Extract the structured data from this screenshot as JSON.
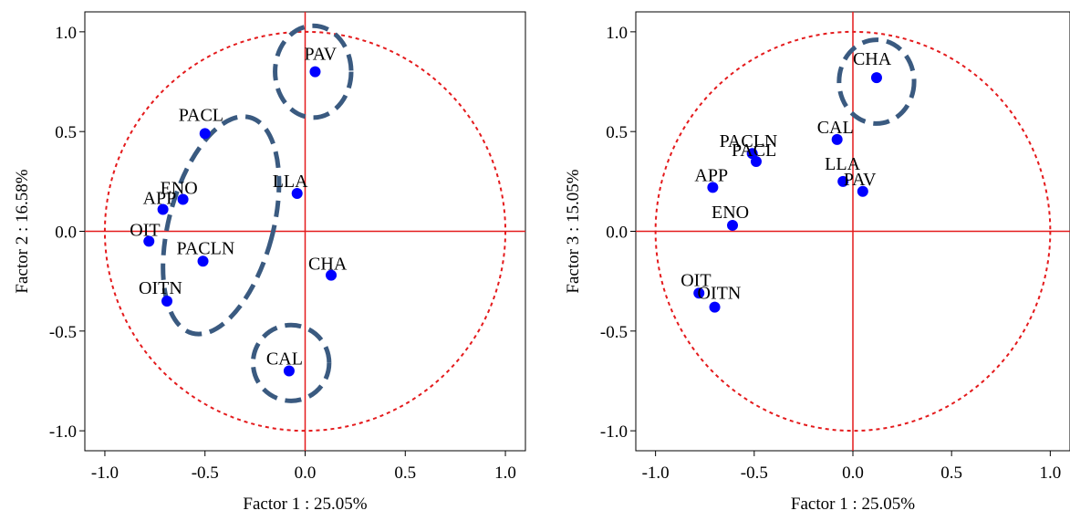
{
  "colors": {
    "point": "#0000ff",
    "axes_cross": "#e41a1c",
    "unit_circle": "#e41a1c",
    "group_ellipse": "#3a5a80",
    "frame": "#000000",
    "text": "#000000"
  },
  "chart_data": [
    {
      "type": "scatter",
      "xlabel": "Factor 1 : 25.05%",
      "ylabel": "Factor 2 : 16.58%",
      "xlim": [
        -1.1,
        1.1
      ],
      "ylim": [
        -1.1,
        1.1
      ],
      "xticks": [
        -1.0,
        -0.5,
        0.0,
        0.5,
        1.0
      ],
      "yticks": [
        -1.0,
        -0.5,
        0.0,
        0.5,
        1.0
      ],
      "xtick_labels": [
        "-1.0",
        "-0.5",
        "0.0",
        "0.5",
        "1.0"
      ],
      "ytick_labels": [
        "-1.0",
        "-0.5",
        "0.0",
        "0.5",
        "1.0"
      ],
      "grid": false,
      "unit_circle": true,
      "zero_lines": true,
      "points": [
        {
          "label": "PAV",
          "x": 0.05,
          "y": 0.8
        },
        {
          "label": "PACL",
          "x": -0.5,
          "y": 0.49
        },
        {
          "label": "ENO",
          "x": -0.61,
          "y": 0.16
        },
        {
          "label": "APP",
          "x": -0.71,
          "y": 0.11
        },
        {
          "label": "OIT",
          "x": -0.78,
          "y": -0.05
        },
        {
          "label": "LLA",
          "x": -0.04,
          "y": 0.19
        },
        {
          "label": "PACLN",
          "x": -0.51,
          "y": -0.15
        },
        {
          "label": "CHA",
          "x": 0.13,
          "y": -0.22
        },
        {
          "label": "OITN",
          "x": -0.69,
          "y": -0.35
        },
        {
          "label": "CAL",
          "x": -0.08,
          "y": -0.7
        }
      ],
      "groups": [
        {
          "center_x": 0.04,
          "center_y": 0.8,
          "rx": 0.19,
          "ry": 0.23,
          "rotation": 0
        },
        {
          "center_x": -0.42,
          "center_y": 0.03,
          "rx": 0.26,
          "ry": 0.56,
          "rotation": 15
        },
        {
          "center_x": -0.07,
          "center_y": -0.66,
          "rx": 0.19,
          "ry": 0.19,
          "rotation": 0
        }
      ]
    },
    {
      "type": "scatter",
      "xlabel": "Factor 1 : 25.05%",
      "ylabel": "Factor 3 : 15.05%",
      "xlim": [
        -1.1,
        1.1
      ],
      "ylim": [
        -1.1,
        1.1
      ],
      "xticks": [
        -1.0,
        -0.5,
        0.0,
        0.5,
        1.0
      ],
      "yticks": [
        -1.0,
        -0.5,
        0.0,
        0.5,
        1.0
      ],
      "xtick_labels": [
        "-1.0",
        "-0.5",
        "0.0",
        "0.5",
        "1.0"
      ],
      "ytick_labels": [
        "-1.0",
        "-0.5",
        "0.0",
        "0.5",
        "1.0"
      ],
      "grid": false,
      "unit_circle": true,
      "zero_lines": true,
      "points": [
        {
          "label": "CHA",
          "x": 0.12,
          "y": 0.77
        },
        {
          "label": "CAL",
          "x": -0.08,
          "y": 0.46
        },
        {
          "label": "PACLN",
          "x": -0.51,
          "y": 0.39
        },
        {
          "label": "PACL",
          "x": -0.49,
          "y": 0.35
        },
        {
          "label": "APP",
          "x": -0.71,
          "y": 0.22
        },
        {
          "label": "LLA",
          "x": -0.05,
          "y": 0.25
        },
        {
          "label": "PAV",
          "x": 0.05,
          "y": 0.2
        },
        {
          "label": "ENO",
          "x": -0.61,
          "y": 0.03
        },
        {
          "label": "OIT",
          "x": -0.78,
          "y": -0.31
        },
        {
          "label": "OITN",
          "x": -0.7,
          "y": -0.38
        }
      ],
      "groups": [
        {
          "center_x": 0.12,
          "center_y": 0.75,
          "rx": 0.19,
          "ry": 0.21,
          "rotation": 0
        }
      ]
    }
  ]
}
